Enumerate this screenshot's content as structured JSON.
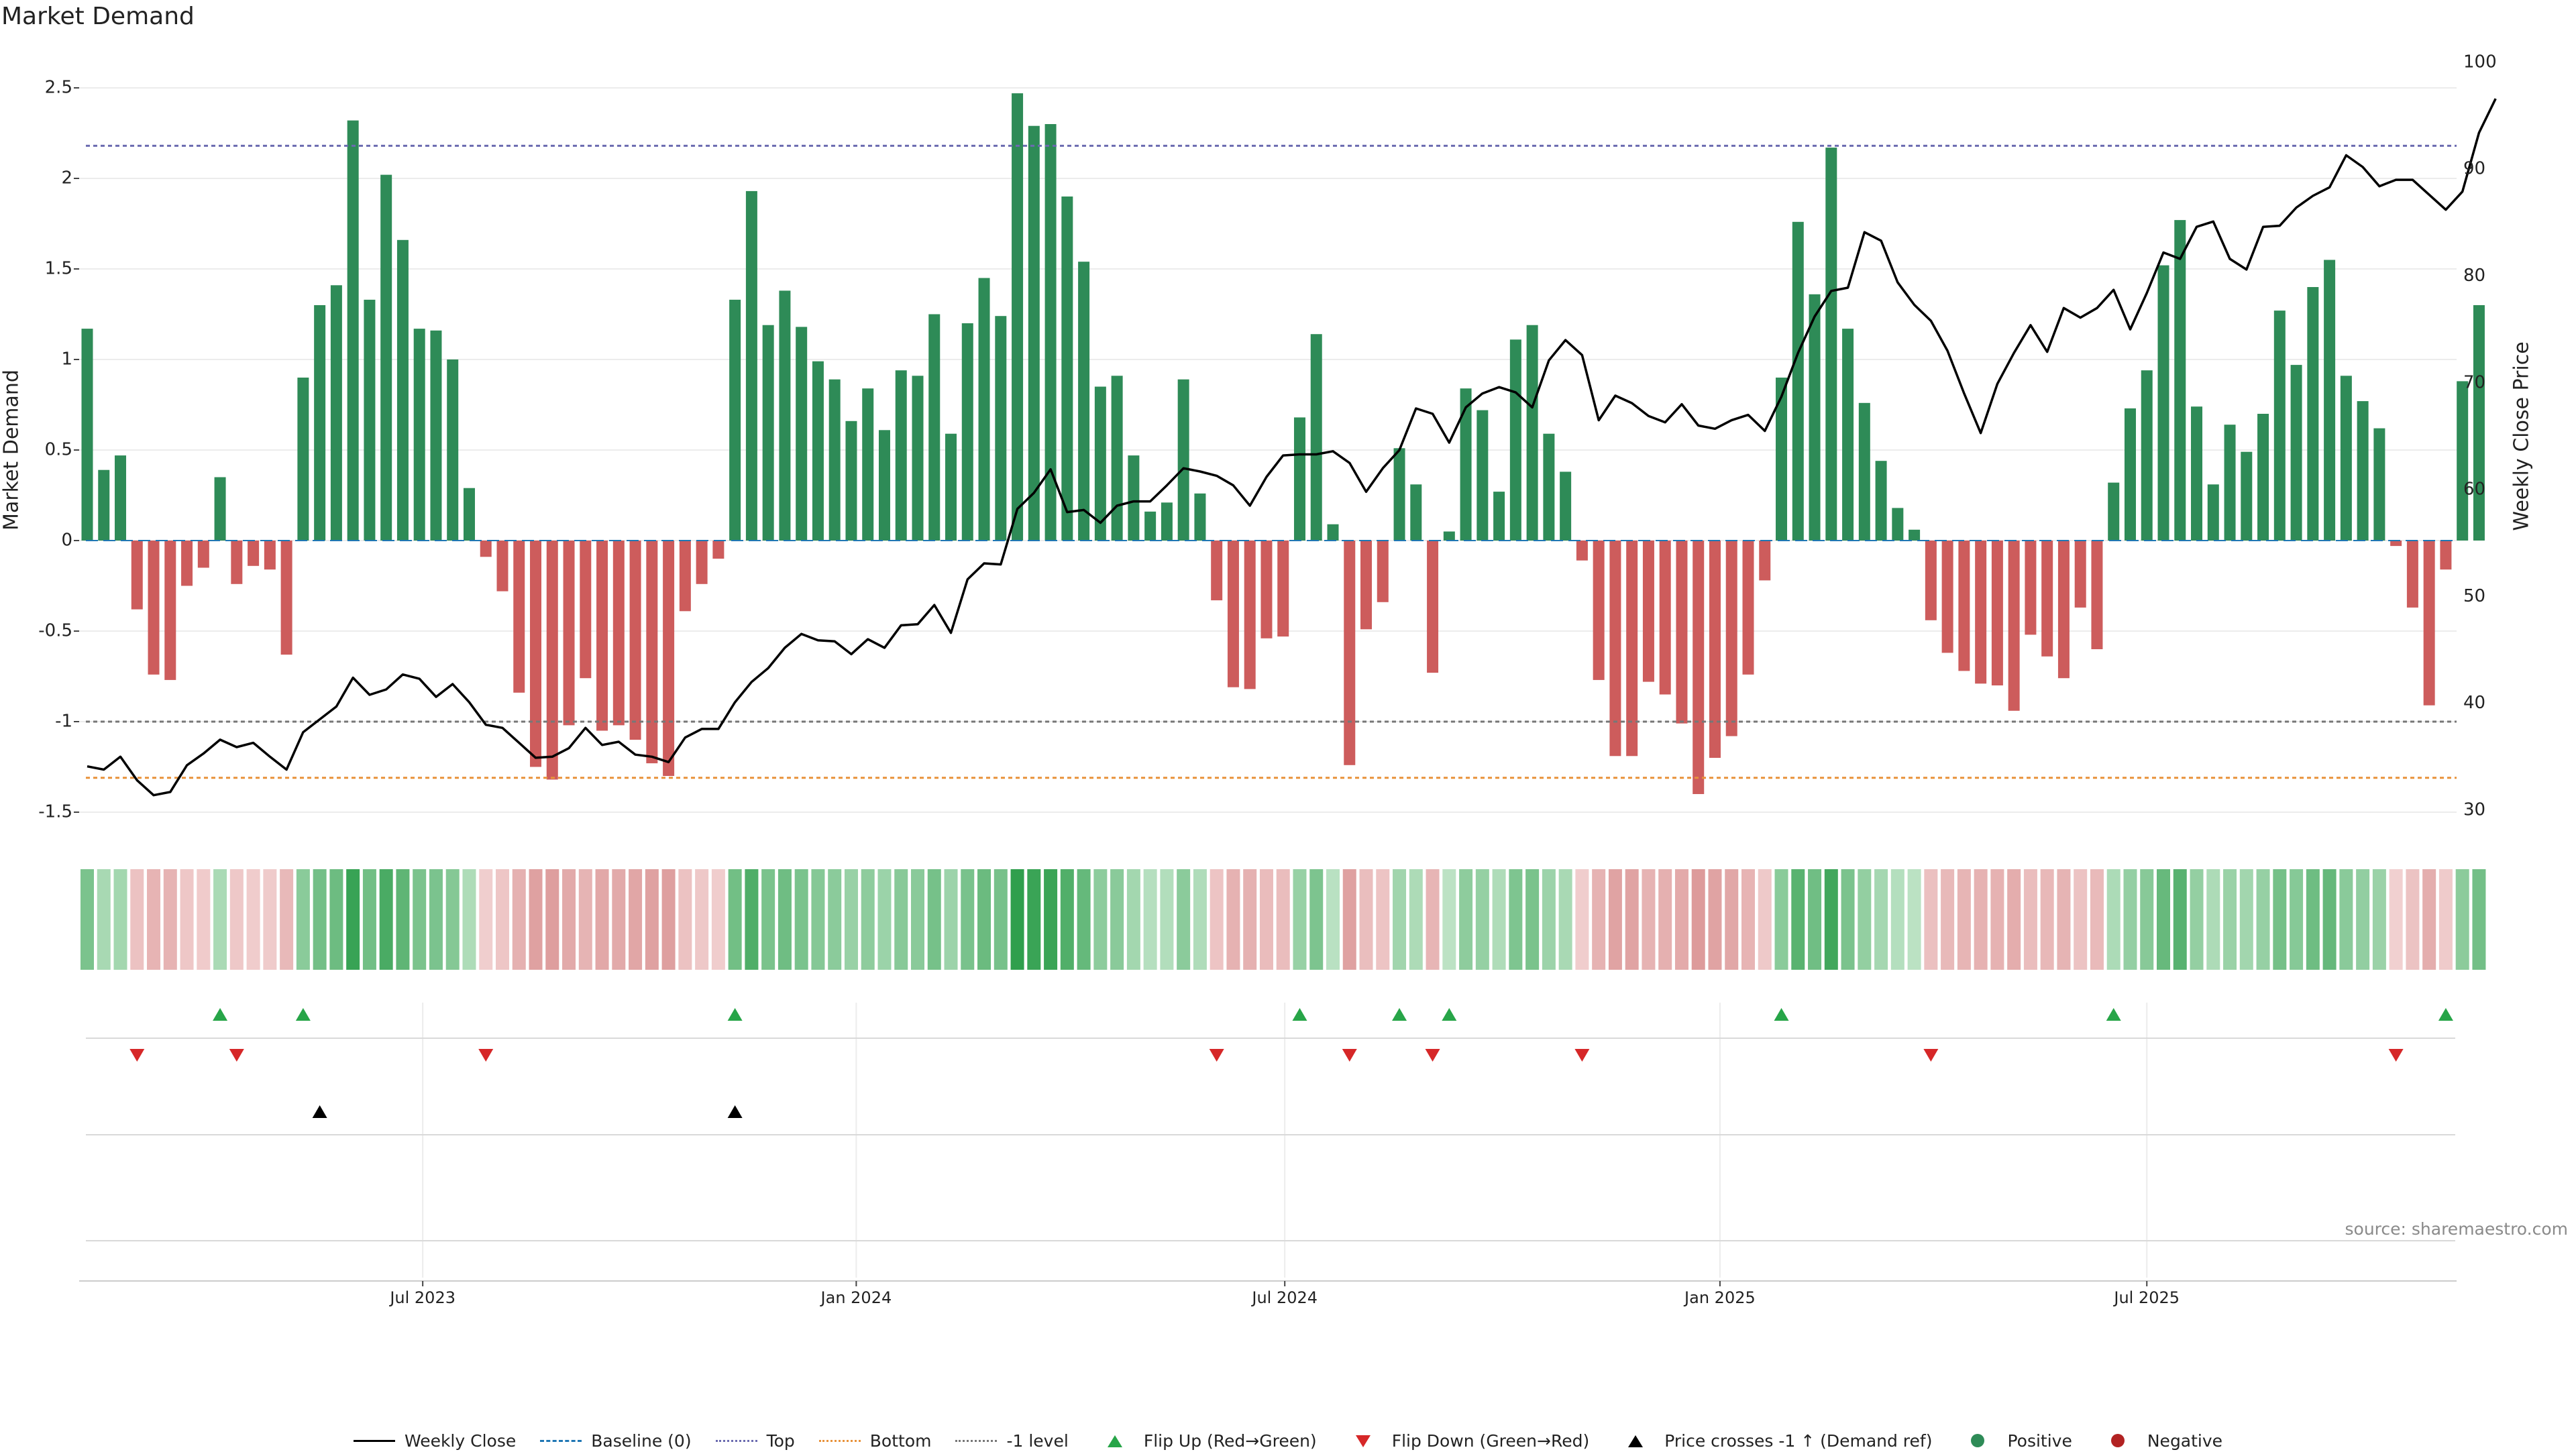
{
  "title": "Market Demand",
  "source": "source: sharemaestro.com",
  "colors": {
    "positive": "#2e8b57",
    "negative": "#cd5c5c",
    "price": "#000000",
    "top": "#6b6bb0",
    "bottom": "#e8923a",
    "minus_one": "#777777",
    "baseline": "#1f77b4",
    "flip_up": "#27a548",
    "flip_down": "#d62728"
  },
  "legend": [
    {
      "label": "Weekly Close",
      "symbol": "line-solid",
      "color": "#000000"
    },
    {
      "label": "Baseline (0)",
      "symbol": "line-dash",
      "color": "#1f77b4"
    },
    {
      "label": "Top",
      "symbol": "line-dot",
      "color": "#6b6bb0"
    },
    {
      "label": "Bottom",
      "symbol": "line-dot",
      "color": "#e8923a"
    },
    {
      "label": "-1 level",
      "symbol": "line-dot",
      "color": "#777777"
    },
    {
      "label": "Flip Up (Red→Green)",
      "symbol": "tri-up",
      "color": "#27a548"
    },
    {
      "label": "Flip Down (Green→Red)",
      "symbol": "tri-down",
      "color": "#d62728"
    },
    {
      "label": "Price crosses -1 ↑ (Demand ref)",
      "symbol": "tri-up",
      "color": "#000000"
    },
    {
      "label": "Positive",
      "symbol": "dot",
      "color": "#2e8b57"
    },
    {
      "label": "Negative",
      "symbol": "dot",
      "color": "#b22222"
    }
  ],
  "chart_data": {
    "type": "bar",
    "title": "Market Demand",
    "ylabel": "Market Demand",
    "y2label": "Weekly Close Price",
    "ylim": [
      -1.5,
      2.5
    ],
    "y2lim": [
      30,
      100
    ],
    "yticks": [
      2.5,
      2,
      1.5,
      1,
      0.5,
      0,
      -0.5,
      -1,
      -1.5
    ],
    "yticklabels": [
      "2.5",
      "2",
      "1.5",
      "1",
      "0.5",
      "0",
      "-0.5",
      "-1",
      "-1.5"
    ],
    "y2ticks": [
      100,
      90,
      80,
      70,
      60,
      50,
      40,
      30
    ],
    "y2ticklabels": [
      "100",
      "90",
      "80",
      "70",
      "60",
      "50",
      "40",
      "30"
    ],
    "xticks": [
      {
        "week": 20.2,
        "label": "Jul 2023"
      },
      {
        "week": 46.3,
        "label": "Jan 2024"
      },
      {
        "week": 72.1,
        "label": "Jul 2024"
      },
      {
        "week": 98.3,
        "label": "Jan 2025"
      },
      {
        "week": 124.0,
        "label": "Jul 2025"
      }
    ],
    "reference_lines": {
      "top": 2.18,
      "bottom": -1.31,
      "minus_one": -1.0,
      "baseline": 0
    },
    "demand": [
      1.17,
      0.39,
      0.47,
      -0.38,
      -0.74,
      -0.77,
      -0.25,
      -0.15,
      0.35,
      -0.24,
      -0.14,
      -0.16,
      -0.63,
      0.9,
      1.3,
      1.41,
      2.32,
      1.33,
      2.02,
      1.66,
      1.17,
      1.16,
      1.0,
      0.29,
      -0.09,
      -0.28,
      -0.84,
      -1.25,
      -1.32,
      -1.02,
      -0.76,
      -1.05,
      -1.02,
      -1.1,
      -1.23,
      -1.3,
      -0.39,
      -0.24,
      -0.1,
      1.33,
      1.93,
      1.19,
      1.38,
      1.18,
      0.99,
      0.89,
      0.66,
      0.84,
      0.61,
      0.94,
      0.91,
      1.25,
      0.59,
      1.2,
      1.45,
      1.24,
      2.47,
      2.29,
      2.3,
      1.9,
      1.54,
      0.85,
      0.91,
      0.47,
      0.16,
      0.21,
      0.89,
      0.26,
      -0.33,
      -0.81,
      -0.82,
      -0.54,
      -0.53,
      0.68,
      1.14,
      0.09,
      -1.24,
      -0.49,
      -0.34,
      0.51,
      0.31,
      -0.73,
      0.05,
      0.84,
      0.72,
      0.27,
      1.11,
      1.19,
      0.59,
      0.38,
      -0.11,
      -0.77,
      -1.19,
      -1.19,
      -0.78,
      -0.85,
      -1.01,
      -1.4,
      -1.2,
      -1.08,
      -0.74,
      -0.22,
      0.9,
      1.76,
      1.36,
      2.17,
      1.17,
      0.76,
      0.44,
      0.18,
      0.06,
      -0.44,
      -0.62,
      -0.72,
      -0.79,
      -0.8,
      -0.94,
      -0.52,
      -0.64,
      -0.76,
      -0.37,
      -0.6,
      0.32,
      0.73,
      0.94,
      1.52,
      1.77,
      0.74,
      0.31,
      0.64,
      0.49,
      0.7,
      1.27,
      0.97,
      1.4,
      1.55,
      0.91,
      0.77,
      0.62,
      -0.03,
      -0.37,
      -0.91,
      -0.16,
      0.88,
      1.3
    ],
    "weekly_close": [
      34.1,
      33.8,
      35.0,
      32.8,
      31.4,
      31.7,
      34.2,
      35.3,
      36.6,
      35.9,
      36.3,
      35.0,
      33.8,
      37.3,
      38.5,
      39.7,
      42.4,
      40.8,
      41.3,
      42.7,
      42.3,
      40.6,
      41.8,
      40.1,
      38.0,
      37.7,
      36.3,
      34.9,
      35.0,
      35.8,
      37.7,
      36.1,
      36.4,
      35.2,
      35.0,
      34.5,
      36.8,
      37.6,
      37.6,
      40.1,
      42.0,
      43.3,
      45.2,
      46.5,
      45.9,
      45.8,
      44.6,
      46.0,
      45.2,
      47.3,
      47.4,
      49.2,
      46.6,
      51.6,
      53.1,
      53.0,
      58.2,
      59.7,
      61.9,
      57.9,
      58.1,
      56.9,
      58.5,
      58.9,
      58.9,
      60.4,
      62.0,
      61.7,
      61.3,
      60.4,
      58.5,
      61.2,
      63.2,
      63.3,
      63.3,
      63.6,
      62.5,
      59.8,
      62.0,
      63.7,
      67.6,
      67.1,
      64.4,
      67.7,
      69.0,
      69.6,
      69.1,
      67.7,
      72.1,
      74.0,
      72.6,
      66.5,
      68.8,
      68.1,
      66.9,
      66.3,
      68.0,
      66.0,
      65.7,
      66.5,
      67.0,
      65.5,
      68.7,
      72.8,
      76.2,
      78.6,
      78.9,
      84.1,
      83.3,
      79.4,
      77.3,
      75.8,
      73.0,
      69.0,
      65.3,
      69.9,
      72.8,
      75.4,
      72.9,
      77.0,
      76.1,
      77.0,
      78.7,
      75.0,
      78.4,
      82.2,
      81.6,
      84.6,
      85.1,
      81.6,
      80.6,
      84.6,
      84.7,
      86.4,
      87.5,
      88.3,
      91.3,
      90.2,
      88.4,
      89.0,
      89.0,
      87.6,
      86.2,
      87.9,
      93.4,
      96.6
    ],
    "flip_up_weeks": [
      8,
      13,
      39,
      73,
      79,
      82,
      102,
      122,
      142
    ],
    "flip_down_weeks": [
      3,
      9,
      24,
      68,
      76,
      81,
      90,
      111,
      139
    ],
    "price_cross_up_weeks": [
      14,
      39
    ]
  }
}
